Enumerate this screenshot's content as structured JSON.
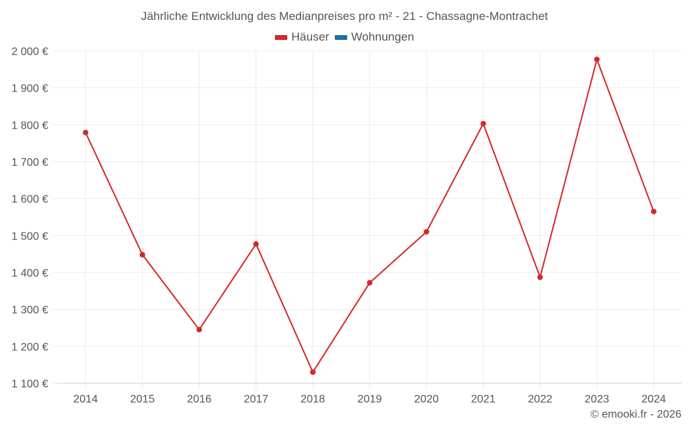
{
  "chart": {
    "title": "Jährliche Entwicklung des Medianpreises pro m² - 21 - Chassagne-Montrachet",
    "credit": "© emooki.fr - 2026",
    "legend": [
      {
        "label": "Häuser",
        "color": "#d62728"
      },
      {
        "label": "Wohnungen",
        "color": "#1f6fa8"
      }
    ],
    "colors": {
      "line": "#d62728",
      "grid": "#ebebeb",
      "axis": "#d0d0d0",
      "text": "#555555"
    }
  },
  "chart_data": {
    "type": "line",
    "title": "Jährliche Entwicklung des Medianpreises pro m² - 21 - Chassagne-Montrachet",
    "xlabel": "",
    "ylabel": "",
    "categories": [
      "2014",
      "2015",
      "2016",
      "2017",
      "2018",
      "2019",
      "2020",
      "2021",
      "2022",
      "2023",
      "2024"
    ],
    "series": [
      {
        "name": "Häuser",
        "color": "#d62728",
        "values": [
          1779,
          1448,
          1245,
          1477,
          1130,
          1372,
          1510,
          1803,
          1387,
          1977,
          1565
        ]
      },
      {
        "name": "Wohnungen",
        "color": "#1f6fa8",
        "values": []
      }
    ],
    "yticks": [
      1100,
      1200,
      1300,
      1400,
      1500,
      1600,
      1700,
      1800,
      1900,
      2000
    ],
    "ytick_labels": [
      "1 100 €",
      "1 200 €",
      "1 300 €",
      "1 400 €",
      "1 500 €",
      "1 600 €",
      "1 700 €",
      "1 800 €",
      "1 900 €",
      "2 000 €"
    ],
    "ylim": [
      1100,
      2000
    ],
    "grid": true,
    "legend_position": "top"
  }
}
